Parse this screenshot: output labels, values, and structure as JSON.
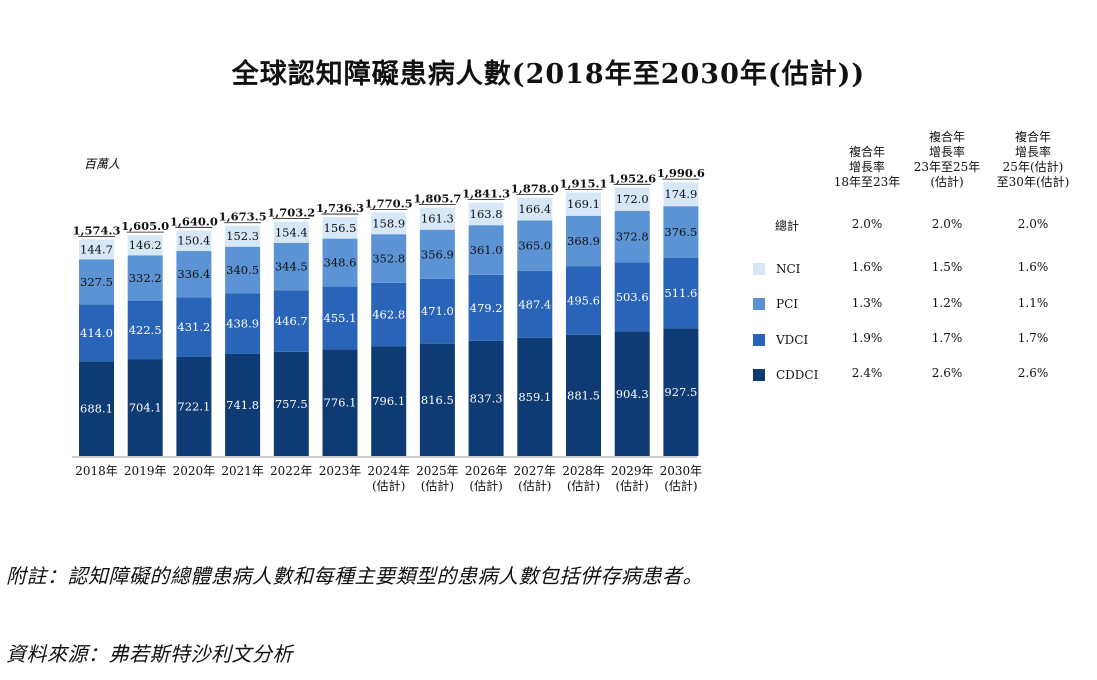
{
  "title": "全球認知障礙患病人數(2018年至2030年(估計))",
  "unit_label": "百萬人",
  "footnote": "附註：認知障礙的總體患病人數和每種主要類型的患病人數包括併存病患者。",
  "source": "資料來源：弗若斯特沙利文分析",
  "colors": {
    "CDDCI": "#0f3b74",
    "VDCI": "#2a64b8",
    "PCI": "#5b93d4",
    "NCI": "#d6e8f8"
  },
  "chart_data": {
    "type": "bar",
    "stacked": true,
    "categories": [
      "2018年",
      "2019年",
      "2020年",
      "2021年",
      "2022年",
      "2023年",
      "2024年\n(估計)",
      "2025年\n(估計)",
      "2026年\n(估計)",
      "2027年\n(估計)",
      "2028年\n(估計)",
      "2029年\n(估計)",
      "2030年\n(估計)"
    ],
    "series": [
      {
        "name": "CDDCI",
        "values": [
          688.1,
          704.1,
          722.1,
          741.8,
          757.5,
          776.1,
          796.1,
          816.5,
          837.3,
          859.1,
          881.5,
          904.3,
          927.5
        ]
      },
      {
        "name": "VDCI",
        "values": [
          414.0,
          422.5,
          431.2,
          438.9,
          446.7,
          455.1,
          462.8,
          471.0,
          479.2,
          487.4,
          495.6,
          503.6,
          511.6
        ]
      },
      {
        "name": "PCI",
        "values": [
          327.5,
          332.2,
          336.4,
          340.5,
          344.5,
          348.6,
          352.8,
          356.9,
          361.0,
          365.0,
          368.9,
          372.8,
          376.5
        ]
      },
      {
        "name": "NCI",
        "values": [
          144.7,
          146.2,
          150.4,
          152.3,
          154.4,
          156.5,
          158.9,
          161.3,
          163.8,
          166.4,
          169.1,
          172.0,
          174.9
        ]
      }
    ],
    "totals": [
      "1,574.3",
      "1,605.0",
      "1,640.0",
      "1,673.5",
      "1,703.2",
      "1,736.3",
      "1,770.5",
      "1,805.7",
      "1,841.3",
      "1,878.0",
      "1,915.1",
      "1,952.6",
      "1,990.6"
    ],
    "ylabel": "百萬人",
    "ylim": [
      0,
      2000
    ]
  },
  "cagr_table": {
    "headers": [
      "複合年\n增長率\n18年至23年",
      "複合年\n增長率\n23年至25年\n(估計)",
      "複合年\n增長率\n25年(估計)\n至30年(估計)"
    ],
    "rows": [
      {
        "label": "總計",
        "values": [
          "2.0%",
          "2.0%",
          "2.0%"
        ]
      },
      {
        "label": "NCI",
        "values": [
          "1.6%",
          "1.5%",
          "1.6%"
        ]
      },
      {
        "label": "PCI",
        "values": [
          "1.3%",
          "1.2%",
          "1.1%"
        ]
      },
      {
        "label": "VDCI",
        "values": [
          "1.9%",
          "1.7%",
          "1.7%"
        ]
      },
      {
        "label": "CDDCI",
        "values": [
          "2.4%",
          "2.6%",
          "2.6%"
        ]
      }
    ]
  }
}
